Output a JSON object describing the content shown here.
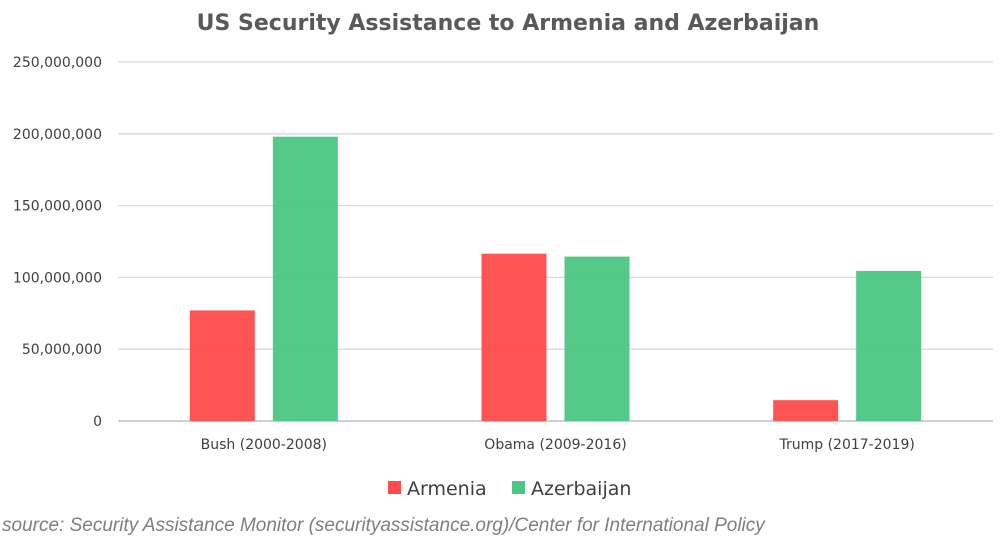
{
  "chart_data": {
    "type": "bar",
    "title": "US Security Assistance to Armenia and Azerbaijan",
    "categories": [
      "Bush (2000-2008)",
      "Obama (2009-2016)",
      "Trump (2017-2019)"
    ],
    "series": [
      {
        "name": "Armenia",
        "color": "#ff4b4b",
        "values": [
          77000000,
          116500000,
          14500000
        ]
      },
      {
        "name": "Azerbaijan",
        "color": "#4cc682",
        "values": [
          198000000,
          114500000,
          104500000
        ]
      }
    ],
    "ylim": [
      0,
      250000000
    ],
    "yticks": [
      0,
      50000000,
      100000000,
      150000000,
      200000000,
      250000000
    ],
    "ytick_labels": [
      "0",
      "50,000,000",
      "100,000,000",
      "150,000,000",
      "200,000,000",
      "250,000,000"
    ],
    "xlabel": "",
    "ylabel": "",
    "grid": true,
    "legend_position": "bottom"
  },
  "source": "source: Security Assistance Monitor (securityassistance.org)/Center for International Policy"
}
